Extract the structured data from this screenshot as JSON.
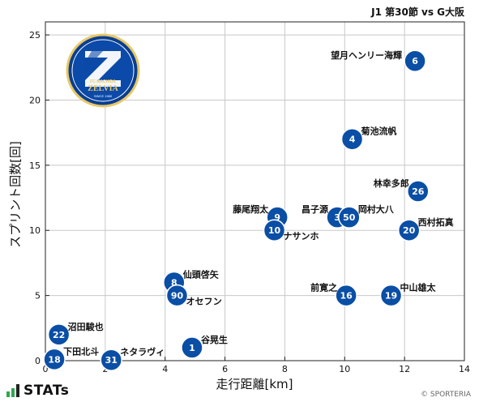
{
  "header": {
    "match": "J1 第30節 vs G大阪"
  },
  "footer": {
    "brand": "STATs",
    "credit": "© SPORTERIA"
  },
  "colors": {
    "marker": "#0a4ea5",
    "marker_text": "#ffffff",
    "grid": "#c8c8c8",
    "axis": "#222222"
  },
  "chart_data": {
    "type": "scatter",
    "xlabel": "走行距離[km]",
    "ylabel": "スプリント回数[回]",
    "xlim": [
      0,
      14
    ],
    "ylim": [
      0,
      26
    ],
    "xticks": [
      0,
      2,
      4,
      6,
      8,
      10,
      12,
      14
    ],
    "yticks": [
      0,
      5,
      10,
      15,
      20,
      25
    ],
    "grid": true,
    "points": [
      {
        "number": "6",
        "name": "望月ヘンリー海輝",
        "x": 12.35,
        "y": 23,
        "label_side": "left"
      },
      {
        "number": "4",
        "name": "菊池流帆",
        "x": 10.25,
        "y": 17,
        "label_side": "right-up"
      },
      {
        "number": "26",
        "name": "林幸多郎",
        "x": 12.45,
        "y": 13,
        "label_side": "left-up"
      },
      {
        "number": "9",
        "name": "藤尾翔太",
        "x": 7.75,
        "y": 11,
        "label_side": "left-up"
      },
      {
        "number": "3",
        "name": "昌子源",
        "x": 9.75,
        "y": 11,
        "label_side": "left-up"
      },
      {
        "number": "50",
        "name": "岡村大八",
        "x": 10.15,
        "y": 11,
        "label_side": "right-up"
      },
      {
        "number": "10",
        "name": "ナサンホ",
        "x": 7.65,
        "y": 10,
        "label_side": "right-down"
      },
      {
        "number": "20",
        "name": "西村拓真",
        "x": 12.15,
        "y": 10,
        "label_side": "right-up"
      },
      {
        "number": "8",
        "name": "仙頭啓矢",
        "x": 4.3,
        "y": 6,
        "label_side": "right-up"
      },
      {
        "number": "90",
        "name": "オセフン",
        "x": 4.4,
        "y": 5,
        "label_side": "right-down"
      },
      {
        "number": "16",
        "name": "前寛之",
        "x": 10.05,
        "y": 5,
        "label_side": "left-up"
      },
      {
        "number": "19",
        "name": "中山雄太",
        "x": 11.55,
        "y": 5,
        "label_side": "right-up"
      },
      {
        "number": "22",
        "name": "沼田駿也",
        "x": 0.45,
        "y": 2,
        "label_side": "right-up"
      },
      {
        "number": "1",
        "name": "谷晃生",
        "x": 4.9,
        "y": 1,
        "label_side": "right-up"
      },
      {
        "number": "18",
        "name": "下田北斗",
        "x": 0.3,
        "y": 0.1,
        "label_side": "right-up"
      },
      {
        "number": "31",
        "name": "ネタラヴィ",
        "x": 2.2,
        "y": 0.05,
        "label_side": "right-up"
      }
    ]
  },
  "logo": {
    "top_text": "FC MACHIDA",
    "name": "ZELVIA",
    "since": "SINCE 1989"
  }
}
